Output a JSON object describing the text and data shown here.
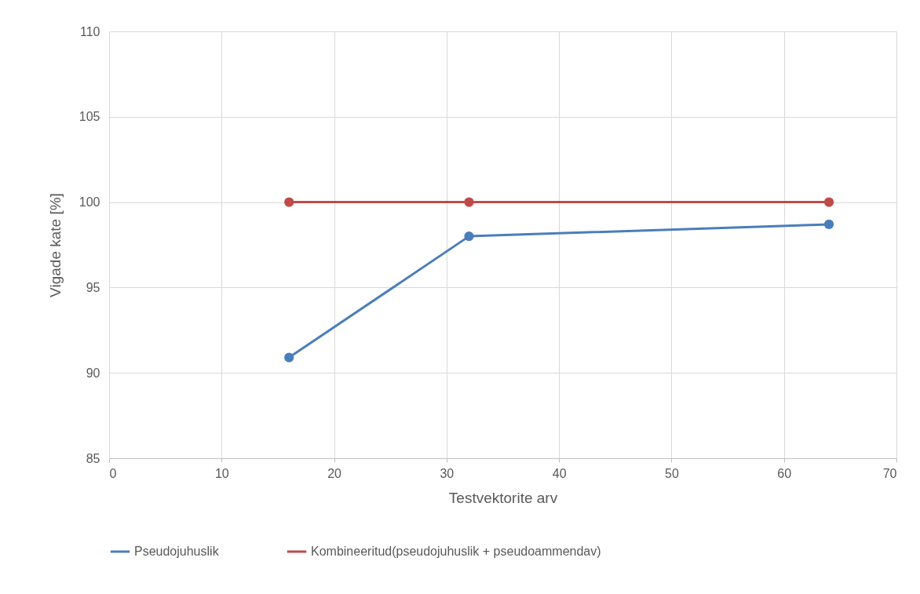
{
  "chart_data": {
    "type": "line",
    "xlabel": "Testvektorite arv",
    "ylabel": "Vigade kate [%]",
    "xlim": [
      0,
      70
    ],
    "xticks": [
      0,
      10,
      20,
      30,
      40,
      50,
      60,
      70
    ],
    "ylim": [
      85,
      110
    ],
    "yticks": [
      85,
      90,
      95,
      100,
      105,
      110
    ],
    "grid": true,
    "legend": "bottom",
    "marker": "circle",
    "line_style": "solid",
    "x": [
      16,
      32,
      64
    ],
    "series": [
      {
        "name": "Pseudojuhuslik",
        "color": "#4a7ebb",
        "values": [
          90.9,
          98.0,
          98.7
        ]
      },
      {
        "name": "Kombineeritud(pseudojuhuslik + pseudoammendav)",
        "color": "#be4b48",
        "values": [
          100,
          100,
          100
        ]
      }
    ]
  }
}
